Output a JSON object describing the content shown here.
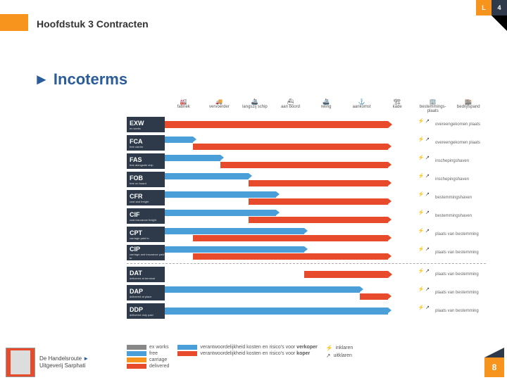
{
  "header": {
    "chapter": "Hoofdstuk 3 Contracten",
    "top_right_1": "L",
    "top_right_2": "4"
  },
  "heading": {
    "arrow": "►",
    "text": "Incoterms"
  },
  "colors": {
    "orange": "#f7941e",
    "dark": "#2e3a4a",
    "blue": "#4a9fd8",
    "red": "#e84b2c",
    "link": "#2a5c9a",
    "grey": "#888888"
  },
  "columns": [
    {
      "label": "fabriek"
    },
    {
      "label": "vervoerder"
    },
    {
      "label": "langszij schip"
    },
    {
      "label": "aan boord"
    },
    {
      "label": "reling"
    },
    {
      "label": "aankomst"
    },
    {
      "label": "kade"
    },
    {
      "label": "bestemmings-plaats"
    },
    {
      "label": "bedrijfspand"
    }
  ],
  "rows": [
    {
      "code": "EXW",
      "sub": "ex works",
      "blue_w": 0,
      "red_start": 0,
      "red_w": 88,
      "end": "overeengekomen plaats",
      "single": true
    },
    {
      "code": "FCA",
      "sub": "free carrier",
      "blue_w": 11,
      "red_start": 11,
      "red_w": 77,
      "end": "overeengekomen plaats"
    },
    {
      "code": "FAS",
      "sub": "free alongside ship",
      "blue_w": 22,
      "red_start": 22,
      "red_w": 66,
      "end": "inschepingshaven"
    },
    {
      "code": "FOB",
      "sub": "free on board",
      "blue_w": 33,
      "red_start": 33,
      "red_w": 55,
      "end": "inschepingshaven"
    },
    {
      "code": "CFR",
      "sub": "cost and freight",
      "blue_w": 44,
      "red_start": 33,
      "red_w": 55,
      "end": "bestemmingshaven"
    },
    {
      "code": "CIF",
      "sub": "cost insurance freight",
      "blue_w": 44,
      "red_start": 33,
      "red_w": 55,
      "end": "bestemmingshaven"
    },
    {
      "code": "CPT",
      "sub": "carriage paid to",
      "blue_w": 55,
      "red_start": 11,
      "red_w": 77,
      "end": "plaats van bestemming"
    },
    {
      "code": "CIP",
      "sub": "carriage and insurance paid to",
      "blue_w": 55,
      "red_start": 11,
      "red_w": 77,
      "end": "plaats van bestemming"
    },
    {
      "code": "DAT",
      "sub": "delivered at terminal",
      "blue_w": 0,
      "red_start": 55,
      "red_w": 33,
      "end": "plaats van bestemming",
      "single": true,
      "red_only_start": 55
    },
    {
      "code": "DAP",
      "sub": "delivered at place",
      "blue_w": 77,
      "red_start": 77,
      "red_w": 11,
      "end": "plaats van bestemming"
    },
    {
      "code": "DDP",
      "sub": "delivered duty paid",
      "blue_w": 88,
      "red_start": 0,
      "red_w": 0,
      "end": "plaats van bestemming",
      "blue_only": true
    }
  ],
  "legend": {
    "col1": [
      {
        "color": "grey",
        "label": "ex works"
      },
      {
        "color": "blue",
        "label": "free"
      },
      {
        "color": "orange",
        "label": "carriage"
      },
      {
        "color": "red",
        "label": "delivered"
      }
    ],
    "col2": [
      {
        "color": "blue",
        "label": "verantwoordelijkheid kosten en risico's voor verkoper",
        "bold": "verkoper"
      },
      {
        "color": "red",
        "label": "verantwoordelijkheid kosten en risico's voor koper",
        "bold": "koper"
      }
    ],
    "col3": [
      {
        "icon": "⚡",
        "label": "inklaren"
      },
      {
        "icon": "↗",
        "label": "uitklaren"
      }
    ]
  },
  "footer": {
    "brand1": "De Handelsroute",
    "arrow": "►",
    "brand2": "Uitgeverij Sarphati",
    "page": "8"
  }
}
